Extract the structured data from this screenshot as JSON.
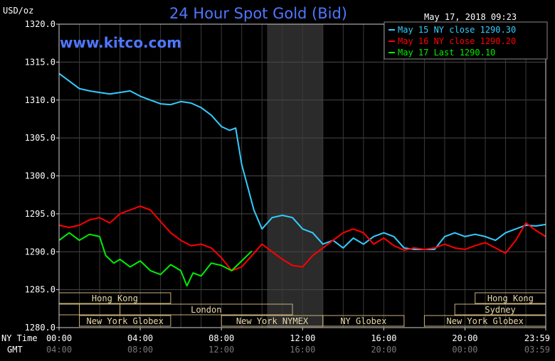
{
  "chart_data": {
    "type": "line",
    "title": "24 Hour Spot Gold (Bid)",
    "ylabel": "USD/oz",
    "timestamp": "May 17, 2018 09:23",
    "watermark": "www.kitco.com",
    "ylim": [
      1280.0,
      1320.0
    ],
    "y_ticks": [
      "1320.0",
      "1315.0",
      "1310.0",
      "1305.0",
      "1300.0",
      "1295.0",
      "1290.0",
      "1285.0",
      "1280.0"
    ],
    "x_ticks_ny": [
      "00:00",
      "04:00",
      "08:00",
      "12:00",
      "16:00",
      "20:00",
      "23:59"
    ],
    "x_ticks_gmt": [
      "04:00",
      "08:00",
      "12:00",
      "16:00",
      "20:00",
      "00:00",
      "03:59"
    ],
    "row_label_ny": "NY Time",
    "row_label_gmt": "GMT",
    "shaded_session_hours": [
      10.25,
      13.0
    ],
    "grid": true,
    "legend_placement": "top-right",
    "series": [
      {
        "name": "May 15 NY close 1290.30",
        "color": "#33ccff",
        "x": [
          0,
          0.5,
          1.0,
          1.5,
          2.0,
          2.5,
          3.0,
          3.5,
          4.0,
          4.5,
          5.0,
          5.5,
          6.0,
          6.5,
          7.0,
          7.5,
          8.0,
          8.4,
          8.7,
          9.0,
          9.3,
          9.6,
          10.0,
          10.5,
          11.0,
          11.5,
          12.0,
          12.5,
          13.0,
          13.5,
          14.0,
          14.5,
          15.0,
          15.5,
          16.0,
          16.5,
          17.0,
          17.5,
          18.0,
          18.5,
          19.0,
          19.5,
          20.0,
          20.5,
          21.0,
          21.5,
          22.0,
          22.5,
          23.0,
          23.5,
          23.98
        ],
        "y": [
          1313.5,
          1312.5,
          1311.5,
          1311.2,
          1311.0,
          1310.8,
          1311.0,
          1311.2,
          1310.5,
          1310.0,
          1309.5,
          1309.4,
          1309.8,
          1309.6,
          1309.0,
          1308.0,
          1306.5,
          1306.0,
          1306.3,
          1301.5,
          1298.5,
          1295.5,
          1293.0,
          1294.5,
          1294.8,
          1294.5,
          1293.0,
          1292.5,
          1291.0,
          1291.5,
          1290.5,
          1291.8,
          1291.0,
          1292.0,
          1292.5,
          1292.0,
          1290.5,
          1290.3,
          1290.3,
          1290.3,
          1292.0,
          1292.5,
          1292.0,
          1292.3,
          1292.0,
          1291.5,
          1292.5,
          1293.0,
          1293.5,
          1293.4,
          1293.6
        ]
      },
      {
        "name": "May 16 NY close 1290.20",
        "color": "#ff0000",
        "x": [
          0,
          0.5,
          1.0,
          1.5,
          2.0,
          2.5,
          3.0,
          3.5,
          4.0,
          4.5,
          5.0,
          5.5,
          6.0,
          6.5,
          7.0,
          7.5,
          8.0,
          8.5,
          9.0,
          9.5,
          10.0,
          10.5,
          11.0,
          11.5,
          12.0,
          12.5,
          13.0,
          13.5,
          14.0,
          14.5,
          15.0,
          15.5,
          16.0,
          16.5,
          17.0,
          17.5,
          18.0,
          18.5,
          19.0,
          19.5,
          20.0,
          20.5,
          21.0,
          21.5,
          22.0,
          22.5,
          23.0,
          23.5,
          23.98
        ],
        "y": [
          1293.5,
          1293.2,
          1293.5,
          1294.2,
          1294.5,
          1293.8,
          1295.0,
          1295.5,
          1296.0,
          1295.5,
          1294.0,
          1292.5,
          1291.5,
          1290.8,
          1291.0,
          1290.5,
          1289.2,
          1287.5,
          1288.0,
          1289.5,
          1291.0,
          1290.0,
          1289.0,
          1288.2,
          1288.0,
          1289.5,
          1290.5,
          1291.5,
          1292.5,
          1293.0,
          1292.5,
          1291.0,
          1291.8,
          1290.8,
          1290.2,
          1290.5,
          1290.3,
          1290.5,
          1291.0,
          1290.5,
          1290.3,
          1290.8,
          1291.2,
          1290.5,
          1289.8,
          1291.5,
          1293.8,
          1292.8,
          1292.0
        ]
      },
      {
        "name": "May 17 Last 1290.10",
        "color": "#00ee00",
        "x": [
          0,
          0.5,
          1.0,
          1.5,
          2.0,
          2.3,
          2.7,
          3.0,
          3.5,
          4.0,
          4.5,
          5.0,
          5.5,
          6.0,
          6.3,
          6.6,
          7.0,
          7.5,
          8.0,
          8.5,
          9.0,
          9.5
        ],
        "y": [
          1291.5,
          1292.5,
          1291.5,
          1292.3,
          1292.0,
          1289.5,
          1288.5,
          1289.0,
          1288.0,
          1288.8,
          1287.5,
          1287.0,
          1288.3,
          1287.5,
          1285.5,
          1287.2,
          1286.8,
          1288.5,
          1288.2,
          1287.5,
          1288.8,
          1290.1
        ]
      }
    ],
    "sessions": [
      {
        "label": "Hong Kong",
        "start": 0,
        "end": 5.5,
        "row": 0
      },
      {
        "label": "Hong Kong",
        "start": 20.5,
        "end": 23.98,
        "row": 0
      },
      {
        "label": "",
        "start": 0,
        "end": 1.0,
        "row": 1
      },
      {
        "label": "",
        "start": 1.0,
        "end": 3.0,
        "row": 1
      },
      {
        "label": "London",
        "start": 3.0,
        "end": 11.5,
        "row": 1
      },
      {
        "label": "Sydney",
        "start": 19.5,
        "end": 23.98,
        "row": 1
      },
      {
        "label": "New York Globex",
        "start": 1.0,
        "end": 5.5,
        "row": 2
      },
      {
        "label": "New York NYMEX",
        "start": 8.0,
        "end": 13.0,
        "row": 2
      },
      {
        "label": "NY Globex",
        "start": 13.0,
        "end": 17.0,
        "row": 2
      },
      {
        "label": "New York Globex",
        "start": 18.0,
        "end": 23.98,
        "row": 2
      }
    ]
  }
}
